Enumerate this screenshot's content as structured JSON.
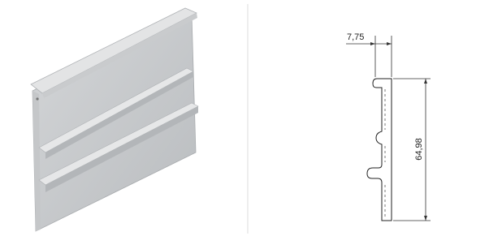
{
  "dimensions": {
    "width": "7,75",
    "height": "64,98"
  }
}
